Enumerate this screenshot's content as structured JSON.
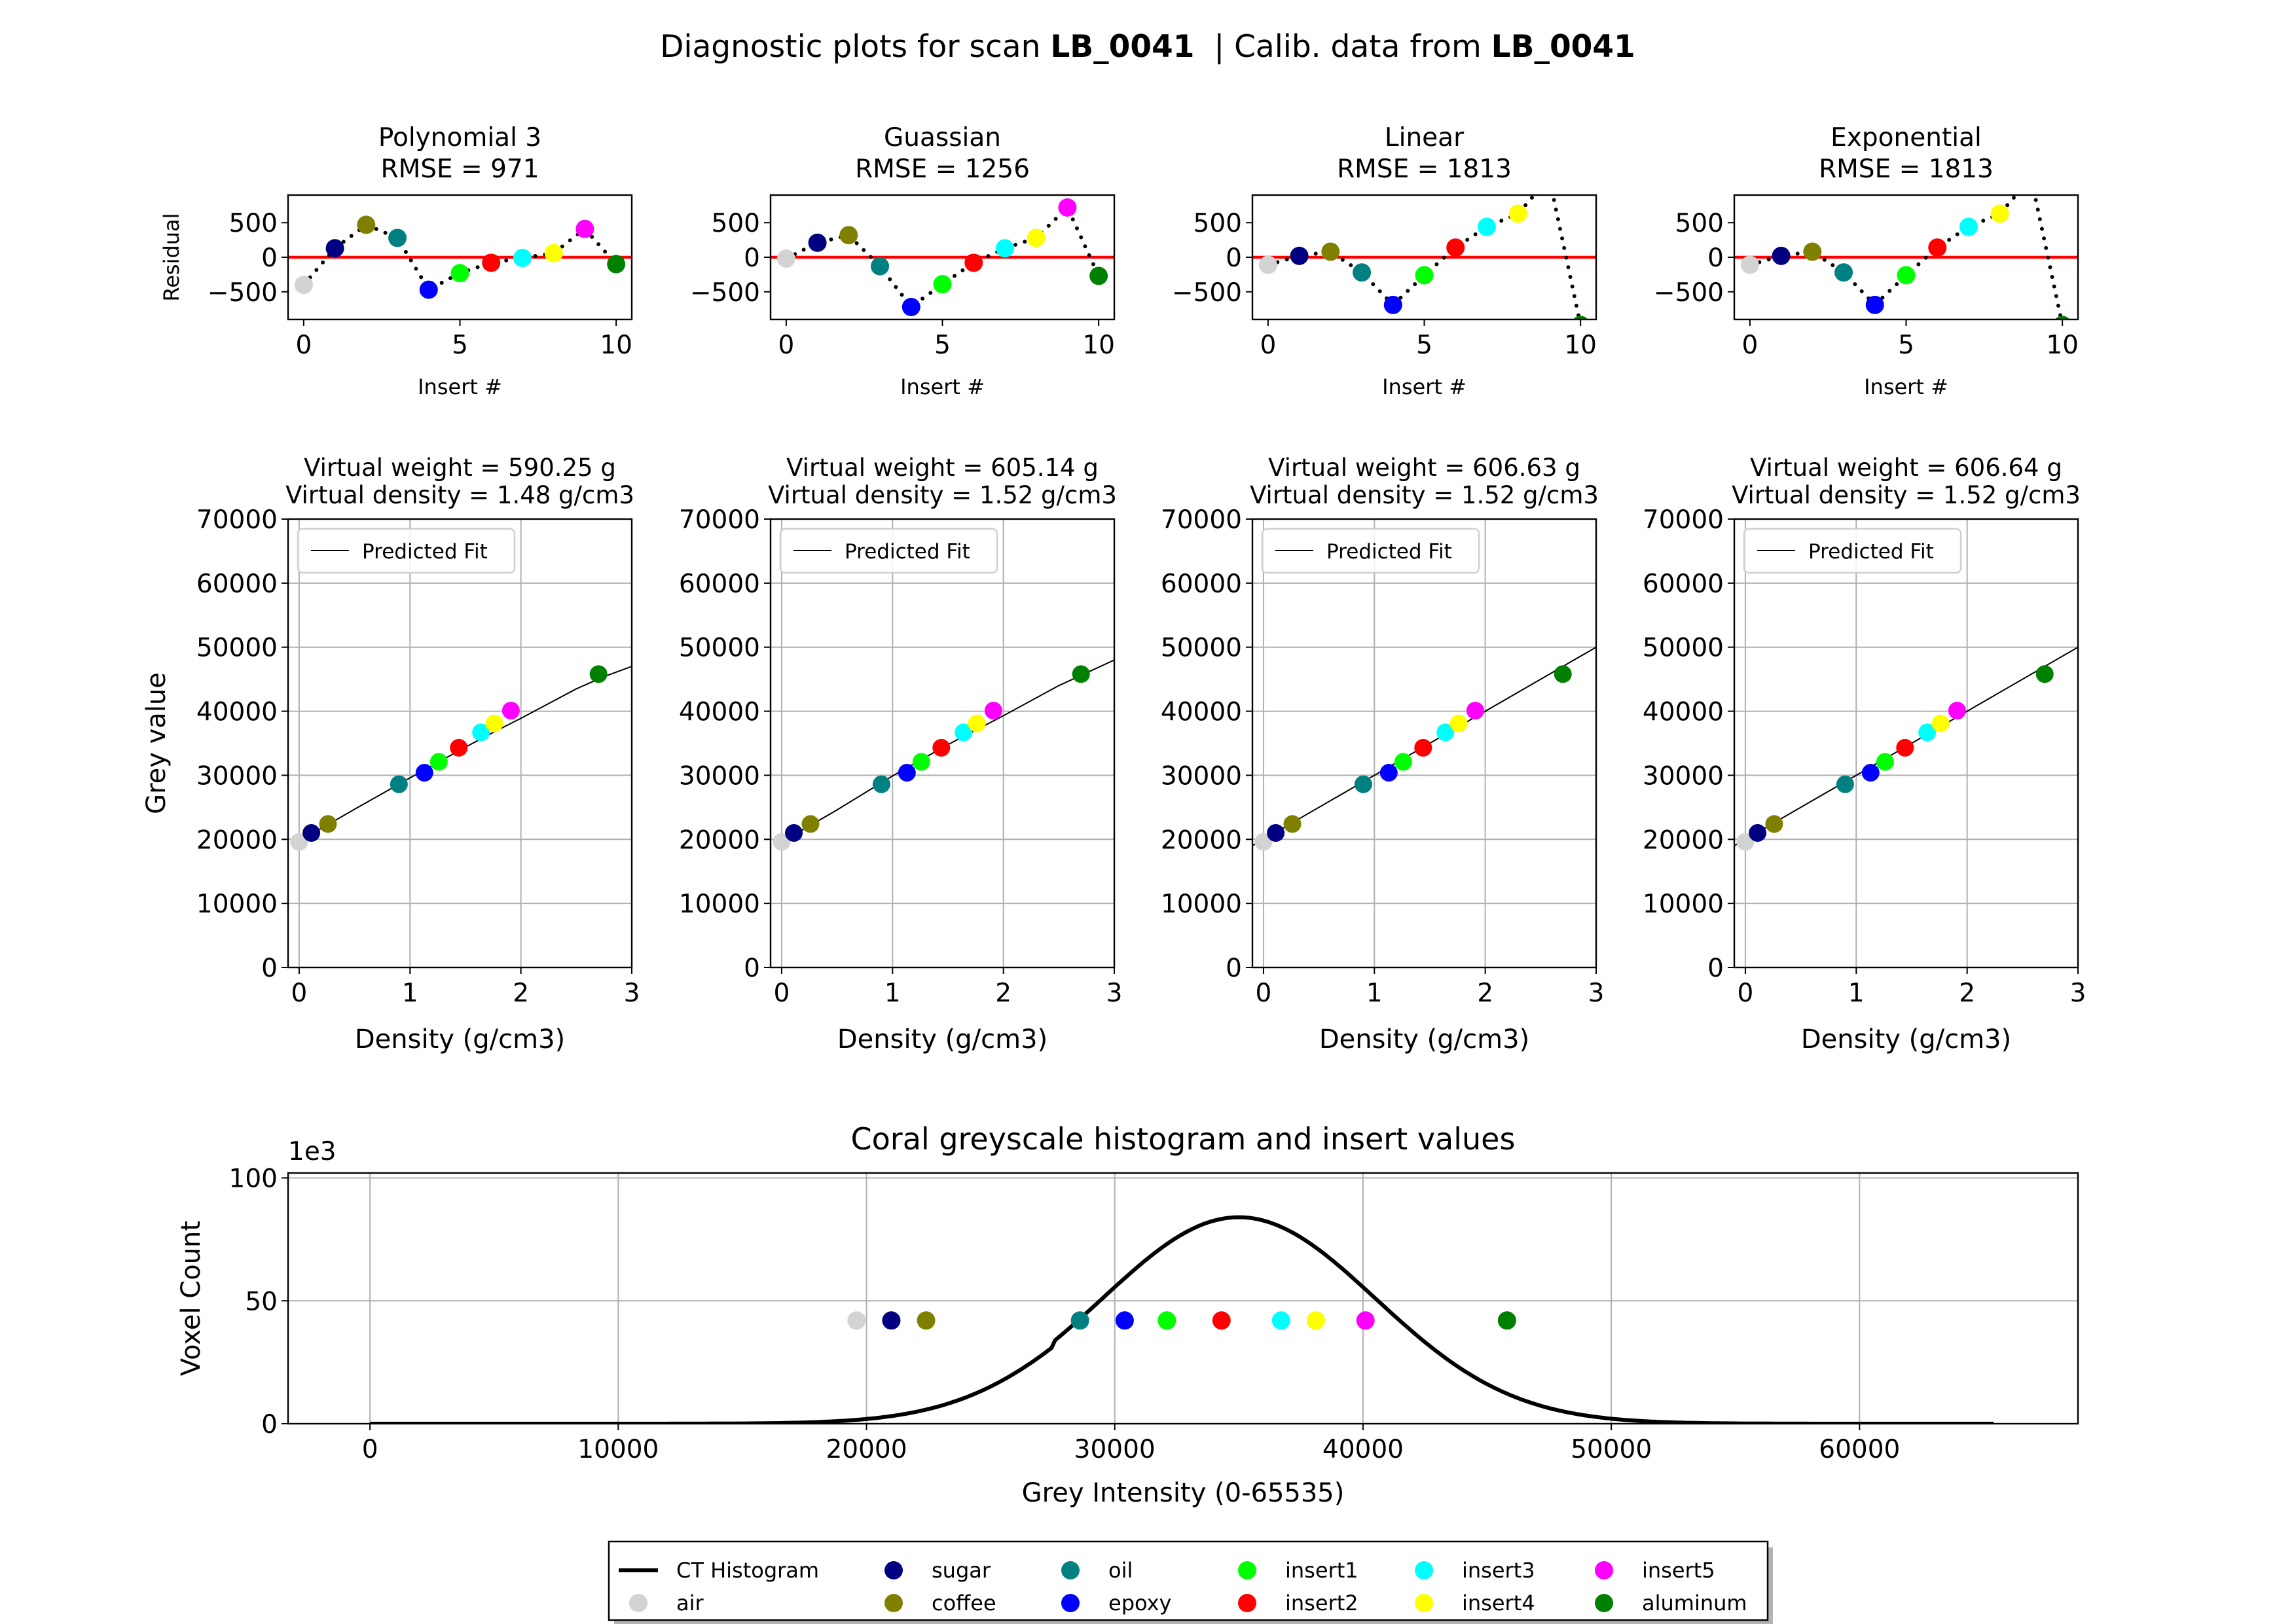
{
  "suptitle": {
    "prefix": "Diagnostic plots for scan ",
    "scan": "LB_0041",
    "middle": "  | Calib. data from ",
    "calib": "LB_0041"
  },
  "colors": {
    "air": "#d3d3d3",
    "sugar": "#000080",
    "coffee": "#808000",
    "oil": "#008080",
    "epoxy": "#0000ff",
    "insert1": "#00ff00",
    "insert2": "#ff0000",
    "insert3": "#00ffff",
    "insert4": "#ffff00",
    "insert5": "#ff00ff",
    "aluminum": "#008000",
    "zero_line": "#ff0000"
  },
  "chart_data": [
    {
      "type": "scatter",
      "panel": "residual",
      "title": "Polynomial 3",
      "subtitle": "RMSE = 971",
      "xlabel": "Insert #",
      "ylabel": "Residual",
      "xlim": [
        -0.5,
        10.5
      ],
      "ylim": [
        -900,
        900
      ],
      "xticks": [
        0,
        5,
        10
      ],
      "yticks": [
        500,
        0,
        -500
      ],
      "ytick_labels": [
        "500",
        "0",
        "−500"
      ],
      "x": [
        0,
        1,
        2,
        3,
        4,
        5,
        6,
        7,
        8,
        9,
        10
      ],
      "y": [
        -400,
        130,
        470,
        280,
        -470,
        -230,
        -80,
        -10,
        60,
        410,
        -100
      ]
    },
    {
      "type": "scatter",
      "panel": "residual",
      "title": "Guassian",
      "subtitle": "RMSE = 1256",
      "xlabel": "Insert #",
      "ylabel": "",
      "xlim": [
        -0.5,
        10.5
      ],
      "ylim": [
        -900,
        900
      ],
      "xticks": [
        0,
        5,
        10
      ],
      "yticks": [
        500,
        0,
        -500
      ],
      "ytick_labels": [
        "500",
        "0",
        "−500"
      ],
      "x": [
        0,
        1,
        2,
        3,
        4,
        5,
        6,
        7,
        8,
        9,
        10
      ],
      "y": [
        -20,
        210,
        320,
        -130,
        -720,
        -390,
        -80,
        130,
        280,
        720,
        -270
      ]
    },
    {
      "type": "scatter",
      "panel": "residual",
      "title": "Linear",
      "subtitle": "RMSE = 1813",
      "xlabel": "Insert #",
      "ylabel": "",
      "xlim": [
        -0.5,
        10.5
      ],
      "ylim": [
        -900,
        900
      ],
      "xticks": [
        0,
        5,
        10
      ],
      "yticks": [
        500,
        0,
        -500
      ],
      "ytick_labels": [
        "500",
        "0",
        "−500"
      ],
      "x": [
        0,
        1,
        2,
        3,
        4,
        5,
        6,
        7,
        8,
        9,
        10
      ],
      "y": [
        -110,
        20,
        80,
        -220,
        -690,
        -260,
        140,
        440,
        630,
        1150,
        -980
      ]
    },
    {
      "type": "scatter",
      "panel": "residual",
      "title": "Exponential",
      "subtitle": "RMSE = 1813",
      "xlabel": "Insert #",
      "ylabel": "",
      "xlim": [
        -0.5,
        10.5
      ],
      "ylim": [
        -900,
        900
      ],
      "xticks": [
        0,
        5,
        10
      ],
      "yticks": [
        500,
        0,
        -500
      ],
      "ytick_labels": [
        "500",
        "0",
        "−500"
      ],
      "x": [
        0,
        1,
        2,
        3,
        4,
        5,
        6,
        7,
        8,
        9,
        10
      ],
      "y": [
        -110,
        20,
        80,
        -220,
        -690,
        -260,
        140,
        440,
        630,
        1150,
        -980
      ]
    },
    {
      "type": "scatter",
      "panel": "fit",
      "title": "Virtual weight = 590.25 g",
      "subtitle": "Virtual density = 1.48 g/cm3",
      "xlabel": "Density (g/cm3)",
      "ylabel": "Grey value",
      "legend": "Predicted Fit",
      "legend_placement": "upper left",
      "grid": true,
      "xlim": [
        -0.1,
        3
      ],
      "ylim": [
        0,
        70000
      ],
      "xticks": [
        0,
        1,
        2,
        3
      ],
      "yticks": [
        0,
        10000,
        20000,
        30000,
        40000,
        50000,
        60000,
        70000
      ],
      "x": [
        0,
        0.11,
        0.26,
        0.9,
        1.13,
        1.26,
        1.44,
        1.64,
        1.76,
        1.91,
        2.7
      ],
      "y": [
        19600,
        21000,
        22400,
        28600,
        30400,
        32100,
        34300,
        36700,
        38100,
        40100,
        45800
      ],
      "fit_x": [
        0,
        0.25,
        0.5,
        0.75,
        1,
        1.25,
        1.5,
        1.75,
        2,
        2.25,
        2.5,
        2.75,
        3
      ],
      "fit_y": [
        19750,
        22200,
        24700,
        27150,
        29600,
        32000,
        34400,
        36700,
        38900,
        41200,
        43500,
        45400,
        47000
      ]
    },
    {
      "type": "scatter",
      "panel": "fit",
      "title": "Virtual weight = 605.14 g",
      "subtitle": "Virtual density = 1.52 g/cm3",
      "xlabel": "Density (g/cm3)",
      "ylabel": "",
      "legend": "Predicted Fit",
      "legend_placement": "upper left",
      "grid": true,
      "xlim": [
        -0.1,
        3
      ],
      "ylim": [
        0,
        70000
      ],
      "xticks": [
        0,
        1,
        2,
        3
      ],
      "yticks": [
        0,
        10000,
        20000,
        30000,
        40000,
        50000,
        60000,
        70000
      ],
      "x": [
        0,
        0.11,
        0.26,
        0.9,
        1.13,
        1.26,
        1.44,
        1.64,
        1.76,
        1.91,
        2.7
      ],
      "y": [
        19600,
        21000,
        22400,
        28600,
        30400,
        32100,
        34300,
        36700,
        38100,
        40100,
        45800
      ],
      "fit_x": [
        0,
        0.5,
        1,
        1.5,
        2,
        2.5,
        3
      ],
      "fit_y": [
        19600,
        24600,
        29900,
        34800,
        39300,
        44000,
        48000
      ]
    },
    {
      "type": "scatter",
      "panel": "fit",
      "title": "Virtual weight = 606.63 g",
      "subtitle": "Virtual density = 1.52 g/cm3",
      "xlabel": "Density (g/cm3)",
      "ylabel": "",
      "legend": "Predicted Fit",
      "legend_placement": "upper left",
      "grid": true,
      "xlim": [
        -0.1,
        3
      ],
      "ylim": [
        0,
        70000
      ],
      "xticks": [
        0,
        1,
        2,
        3
      ],
      "yticks": [
        0,
        10000,
        20000,
        30000,
        40000,
        50000,
        60000,
        70000
      ],
      "x": [
        0,
        0.11,
        0.26,
        0.9,
        1.13,
        1.26,
        1.44,
        1.64,
        1.76,
        1.91,
        2.7
      ],
      "y": [
        19600,
        21000,
        22400,
        28600,
        30400,
        32100,
        34300,
        36700,
        38100,
        40100,
        45800
      ],
      "fit_x": [
        -0.1,
        3
      ],
      "fit_y": [
        19000,
        50000
      ]
    },
    {
      "type": "scatter",
      "panel": "fit",
      "title": "Virtual weight = 606.64 g",
      "subtitle": "Virtual density = 1.52 g/cm3",
      "xlabel": "Density (g/cm3)",
      "ylabel": "",
      "legend": "Predicted Fit",
      "legend_placement": "upper left",
      "grid": true,
      "xlim": [
        -0.1,
        3
      ],
      "ylim": [
        0,
        70000
      ],
      "xticks": [
        0,
        1,
        2,
        3
      ],
      "yticks": [
        0,
        10000,
        20000,
        30000,
        40000,
        50000,
        60000,
        70000
      ],
      "x": [
        0,
        0.11,
        0.26,
        0.9,
        1.13,
        1.26,
        1.44,
        1.64,
        1.76,
        1.91,
        2.7
      ],
      "y": [
        19600,
        21000,
        22400,
        28600,
        30400,
        32100,
        34300,
        36700,
        38100,
        40100,
        45800
      ],
      "fit_x": [
        -0.1,
        3
      ],
      "fit_y": [
        19000,
        50000
      ]
    },
    {
      "type": "line",
      "panel": "histogram",
      "title": "Coral greyscale histogram and insert values",
      "xlabel": "Grey Intensity (0-65535)",
      "ylabel": "Voxel Count",
      "offset_label": "1e3",
      "grid": true,
      "xlim": [
        -3300,
        68800
      ],
      "ylim": [
        0,
        102
      ],
      "xticks": [
        0,
        10000,
        20000,
        30000,
        40000,
        50000,
        60000
      ],
      "yticks": [
        0,
        50,
        100
      ],
      "histogram_x_range": [
        0,
        65535
      ],
      "histogram_peak": [
        35000,
        84
      ],
      "histogram_sigma": 5500,
      "histogram_step_at": 27500,
      "insert_marker_y": 42,
      "insert_x": [
        19600,
        21000,
        22400,
        28600,
        30400,
        32100,
        34300,
        36700,
        38100,
        40100,
        45800
      ]
    }
  ],
  "legend": {
    "items": [
      {
        "key": "ct",
        "label": "CT Histogram",
        "kind": "line"
      },
      {
        "key": "air",
        "label": "air",
        "kind": "dot"
      },
      {
        "key": "sugar",
        "label": "sugar",
        "kind": "dot"
      },
      {
        "key": "coffee",
        "label": "coffee",
        "kind": "dot"
      },
      {
        "key": "oil",
        "label": "oil",
        "kind": "dot"
      },
      {
        "key": "epoxy",
        "label": "epoxy",
        "kind": "dot"
      },
      {
        "key": "insert1",
        "label": "insert1",
        "kind": "dot"
      },
      {
        "key": "insert2",
        "label": "insert2",
        "kind": "dot"
      },
      {
        "key": "insert3",
        "label": "insert3",
        "kind": "dot"
      },
      {
        "key": "insert4",
        "label": "insert4",
        "kind": "dot"
      },
      {
        "key": "insert5",
        "label": "insert5",
        "kind": "dot"
      },
      {
        "key": "aluminum",
        "label": "aluminum",
        "kind": "dot"
      }
    ]
  }
}
